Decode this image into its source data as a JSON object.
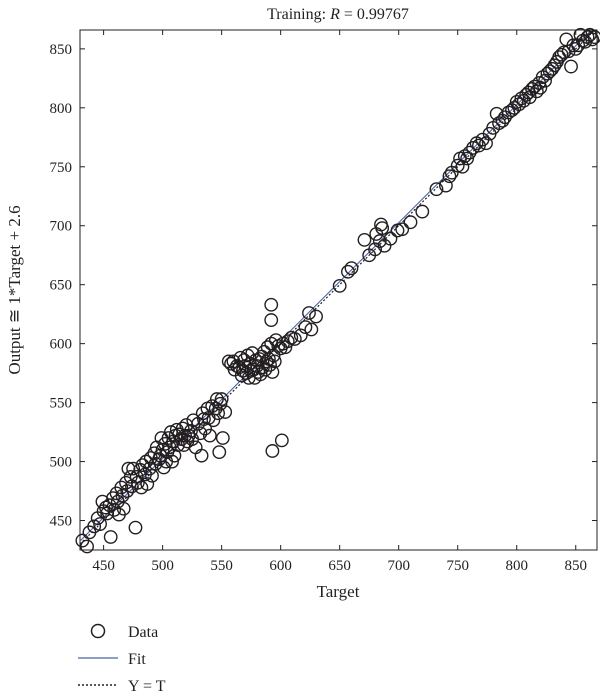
{
  "chart_data": {
    "type": "scatter",
    "title_prefix": "Training: ",
    "title_r": "R",
    "title_value": " = 0.99767",
    "xlabel": "Target",
    "ylabel": "Output ≅ 1*Target + 2.6",
    "xlim": [
      430,
      868
    ],
    "ylim": [
      425,
      866
    ],
    "xticks": [
      450,
      500,
      550,
      600,
      650,
      700,
      750,
      800,
      850
    ],
    "yticks": [
      450,
      500,
      550,
      600,
      650,
      700,
      750,
      800,
      850
    ],
    "fit": {
      "slope": 1,
      "intercept": 2.6
    },
    "legend": [
      "Data",
      "Fit",
      "Y = T"
    ],
    "colors": {
      "data": "#231f20",
      "fit": "#4a62a8",
      "yt": "#231f20",
      "axis": "#231f20"
    },
    "series": [
      {
        "name": "Data",
        "points": [
          [
            432,
            433
          ],
          [
            436,
            428
          ],
          [
            438,
            440
          ],
          [
            442,
            445
          ],
          [
            445,
            452
          ],
          [
            447,
            447
          ],
          [
            449,
            466
          ],
          [
            450,
            458
          ],
          [
            452,
            461
          ],
          [
            453,
            456
          ],
          [
            455,
            463
          ],
          [
            456,
            436
          ],
          [
            458,
            469
          ],
          [
            459,
            459
          ],
          [
            461,
            473
          ],
          [
            462,
            466
          ],
          [
            463,
            455
          ],
          [
            465,
            478
          ],
          [
            466,
            471
          ],
          [
            467,
            460
          ],
          [
            469,
            482
          ],
          [
            470,
            475
          ],
          [
            471,
            494
          ],
          [
            473,
            487
          ],
          [
            474,
            479
          ],
          [
            475,
            494
          ],
          [
            477,
            444
          ],
          [
            478,
            487
          ],
          [
            479,
            482
          ],
          [
            481,
            493
          ],
          [
            482,
            478
          ],
          [
            483,
            497
          ],
          [
            485,
            489
          ],
          [
            486,
            500
          ],
          [
            487,
            481
          ],
          [
            489,
            494
          ],
          [
            490,
            503
          ],
          [
            491,
            488
          ],
          [
            493,
            507
          ],
          [
            494,
            498
          ],
          [
            495,
            512
          ],
          [
            497,
            502
          ],
          [
            498,
            505
          ],
          [
            499,
            520
          ],
          [
            500,
            510
          ],
          [
            501,
            495
          ],
          [
            502,
            515
          ],
          [
            503,
            500
          ],
          [
            504,
            508
          ],
          [
            505,
            520
          ],
          [
            506,
            512
          ],
          [
            507,
            525
          ],
          [
            508,
            500
          ],
          [
            509,
            517
          ],
          [
            510,
            505
          ],
          [
            511,
            522
          ],
          [
            512,
            527
          ],
          [
            513,
            514
          ],
          [
            514,
            523
          ],
          [
            516,
            519
          ],
          [
            517,
            528
          ],
          [
            518,
            514
          ],
          [
            519,
            522
          ],
          [
            520,
            531
          ],
          [
            521,
            517
          ],
          [
            522,
            522
          ],
          [
            524,
            526
          ],
          [
            525,
            519
          ],
          [
            526,
            535
          ],
          [
            528,
            512
          ],
          [
            530,
            532
          ],
          [
            532,
            524
          ],
          [
            533,
            505
          ],
          [
            534,
            541
          ],
          [
            535,
            536
          ],
          [
            536,
            528
          ],
          [
            538,
            545
          ],
          [
            539,
            537
          ],
          [
            540,
            522
          ],
          [
            542,
            547
          ],
          [
            543,
            535
          ],
          [
            545,
            545
          ],
          [
            546,
            553
          ],
          [
            547,
            541
          ],
          [
            548,
            508
          ],
          [
            549,
            549
          ],
          [
            550,
            553
          ],
          [
            551,
            520
          ],
          [
            553,
            542
          ],
          [
            556,
            585
          ],
          [
            558,
            583
          ],
          [
            560,
            585
          ],
          [
            561,
            578
          ],
          [
            563,
            581
          ],
          [
            565,
            580
          ],
          [
            566,
            588
          ],
          [
            567,
            573
          ],
          [
            568,
            577
          ],
          [
            569,
            586
          ],
          [
            570,
            581
          ],
          [
            571,
            575
          ],
          [
            572,
            590
          ],
          [
            573,
            571
          ],
          [
            574,
            583
          ],
          [
            575,
            577
          ],
          [
            576,
            592
          ],
          [
            577,
            578
          ],
          [
            578,
            571
          ],
          [
            579,
            586
          ],
          [
            580,
            581
          ],
          [
            581,
            576
          ],
          [
            582,
            587
          ],
          [
            583,
            574
          ],
          [
            584,
            589
          ],
          [
            585,
            580
          ],
          [
            586,
            593
          ],
          [
            587,
            578
          ],
          [
            588,
            585
          ],
          [
            589,
            597
          ],
          [
            590,
            587
          ],
          [
            591,
            582
          ],
          [
            592,
            600
          ],
          [
            592,
            633
          ],
          [
            592,
            620
          ],
          [
            593,
            576
          ],
          [
            593,
            509
          ],
          [
            594,
            590
          ],
          [
            595,
            585
          ],
          [
            596,
            603
          ],
          [
            598,
            598
          ],
          [
            600,
            596
          ],
          [
            601,
            518
          ],
          [
            602,
            600
          ],
          [
            604,
            597
          ],
          [
            606,
            602
          ],
          [
            609,
            605
          ],
          [
            612,
            604
          ],
          [
            617,
            607
          ],
          [
            621,
            614
          ],
          [
            624,
            626
          ],
          [
            626,
            612
          ],
          [
            630,
            623
          ],
          [
            650,
            649
          ],
          [
            657,
            661
          ],
          [
            660,
            664
          ],
          [
            671,
            688
          ],
          [
            675,
            675
          ],
          [
            680,
            680
          ],
          [
            681,
            693
          ],
          [
            684,
            687
          ],
          [
            685,
            701
          ],
          [
            686,
            698
          ],
          [
            688,
            683
          ],
          [
            693,
            689
          ],
          [
            699,
            696
          ],
          [
            703,
            697
          ],
          [
            710,
            703
          ],
          [
            720,
            712
          ],
          [
            732,
            731
          ],
          [
            740,
            734
          ],
          [
            743,
            742
          ],
          [
            745,
            745
          ],
          [
            750,
            751
          ],
          [
            752,
            757
          ],
          [
            754,
            750
          ],
          [
            756,
            759
          ],
          [
            758,
            757
          ],
          [
            760,
            762
          ],
          [
            763,
            766
          ],
          [
            766,
            770
          ],
          [
            768,
            768
          ],
          [
            771,
            773
          ],
          [
            774,
            770
          ],
          [
            777,
            778
          ],
          [
            780,
            783
          ],
          [
            783,
            795
          ],
          [
            785,
            787
          ],
          [
            788,
            789
          ],
          [
            790,
            792
          ],
          [
            793,
            796
          ],
          [
            796,
            798
          ],
          [
            798,
            800
          ],
          [
            800,
            805
          ],
          [
            802,
            803
          ],
          [
            804,
            808
          ],
          [
            806,
            806
          ],
          [
            808,
            811
          ],
          [
            810,
            813
          ],
          [
            811,
            809
          ],
          [
            813,
            816
          ],
          [
            815,
            818
          ],
          [
            817,
            814
          ],
          [
            819,
            821
          ],
          [
            820,
            817
          ],
          [
            822,
            826
          ],
          [
            824,
            823
          ],
          [
            826,
            829
          ],
          [
            828,
            831
          ],
          [
            830,
            833
          ],
          [
            832,
            836
          ],
          [
            834,
            839
          ],
          [
            836,
            843
          ],
          [
            838,
            845
          ],
          [
            840,
            847
          ],
          [
            842,
            858
          ],
          [
            844,
            848
          ],
          [
            846,
            835
          ],
          [
            848,
            853
          ],
          [
            850,
            850
          ],
          [
            852,
            853
          ],
          [
            854,
            862
          ],
          [
            856,
            857
          ],
          [
            858,
            856
          ],
          [
            860,
            860
          ],
          [
            862,
            862
          ],
          [
            864,
            858
          ],
          [
            866,
            860
          ]
        ]
      }
    ]
  }
}
